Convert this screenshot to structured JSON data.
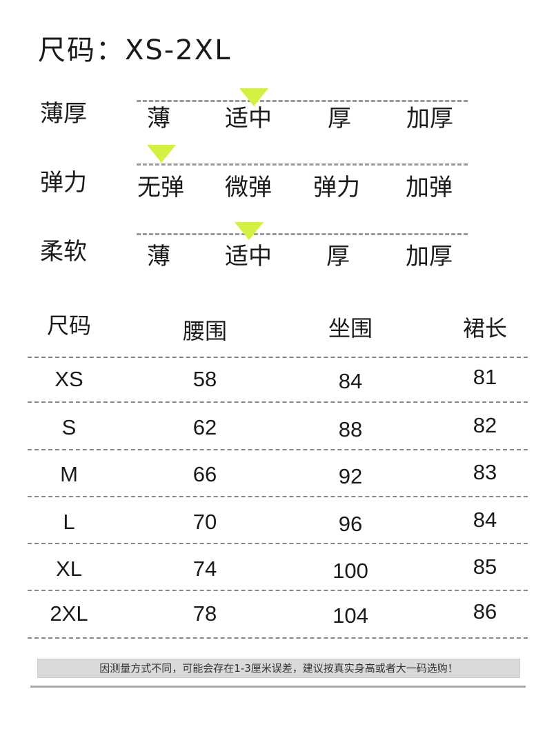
{
  "title": "尺码：XS-2XL",
  "accent_color": "#d4f040",
  "attributes": [
    {
      "label": "薄厚",
      "options": [
        "薄",
        "适中",
        "厚",
        "加厚"
      ],
      "selected": "适中"
    },
    {
      "label": "弹力",
      "options": [
        "无弹",
        "微弹",
        "弹力",
        "加弹"
      ],
      "selected": "无弹"
    },
    {
      "label": "柔软",
      "options": [
        "薄",
        "适中",
        "厚",
        "加厚"
      ],
      "selected": "适中"
    }
  ],
  "table": {
    "headers": [
      "尺码",
      "腰围",
      "坐围",
      "裙长"
    ],
    "rows": [
      [
        "XS",
        "58",
        "84",
        "81"
      ],
      [
        "S",
        "62",
        "88",
        "82"
      ],
      [
        "M",
        "66",
        "92",
        "83"
      ],
      [
        "L",
        "70",
        "96",
        "84"
      ],
      [
        "XL",
        "74",
        "100",
        "85"
      ],
      [
        "2XL",
        "78",
        "104",
        "86"
      ]
    ]
  },
  "note": "因测量方式不同，可能会存在1-3厘米误差，建议按真实身高或者大一码选购！"
}
